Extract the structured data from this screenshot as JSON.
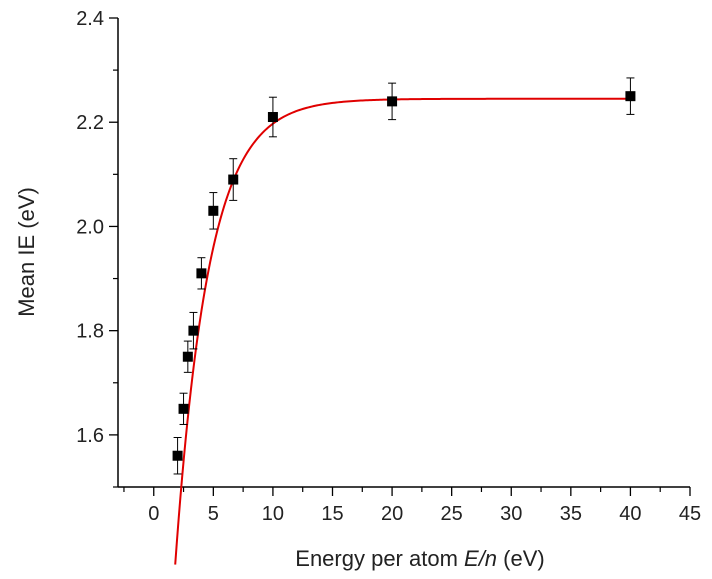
{
  "chart_data": {
    "type": "scatter",
    "xlabel_parts": [
      "Energy per atom ",
      "E/n",
      " (eV)"
    ],
    "ylabel": "Mean IE (eV)",
    "xlim": [
      -3,
      45
    ],
    "ylim": [
      1.5,
      2.4
    ],
    "x_ticks": [
      "0",
      "5",
      "10",
      "15",
      "20",
      "25",
      "30",
      "35",
      "40",
      "45"
    ],
    "y_ticks": [
      "1.6",
      "1.8",
      "2.0",
      "2.2",
      "2.4"
    ],
    "series": [
      {
        "x": [
          2.0,
          2.5,
          2.86,
          3.33,
          4.0,
          5.0,
          6.67,
          10.0,
          20.0,
          40.0
        ],
        "y": [
          1.56,
          1.65,
          1.75,
          1.8,
          1.91,
          2.03,
          2.09,
          2.21,
          2.24,
          2.25
        ],
        "error": [
          0.035,
          0.03,
          0.03,
          0.035,
          0.03,
          0.035,
          0.04,
          0.038,
          0.035,
          0.035
        ],
        "marker": "square",
        "color": "#000000"
      }
    ],
    "fit_curve": {
      "color": "#e00000",
      "model": "exponential saturation",
      "x_range": [
        1.8,
        40.0
      ]
    },
    "grid": false
  }
}
